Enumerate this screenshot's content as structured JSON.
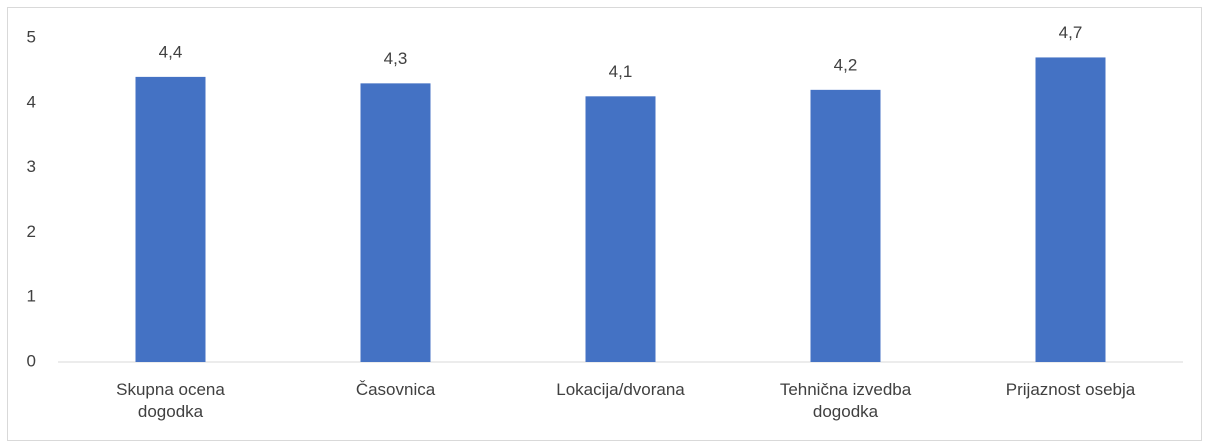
{
  "chart_data": {
    "type": "bar",
    "categories": [
      "Skupna ocena dogodka",
      "Časovnica",
      "Lokacija/dvorana",
      "Tehnična izvedba dogodka",
      "Prijaznost osebja"
    ],
    "values": [
      4.4,
      4.3,
      4.1,
      4.2,
      4.7
    ],
    "value_labels": [
      "4,4",
      "4,3",
      "4,1",
      "4,2",
      "4,7"
    ],
    "color": "#4472c4",
    "ylim": [
      0,
      5
    ],
    "yticks": [
      0,
      1,
      2,
      3,
      4,
      5
    ],
    "grid": false
  }
}
